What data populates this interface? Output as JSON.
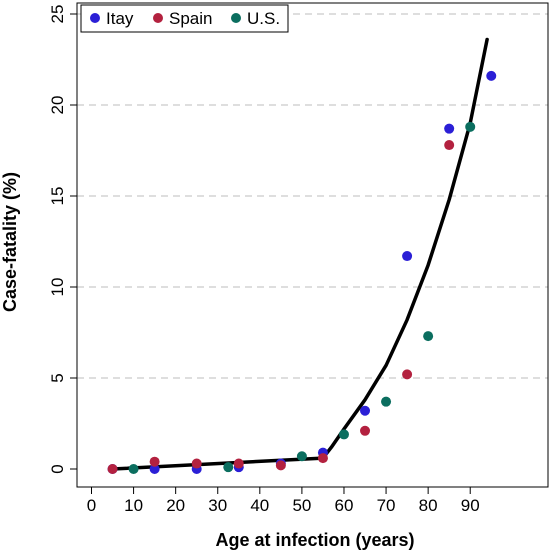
{
  "chart_data": {
    "type": "scatter",
    "xlabel": "Age at infection (years)",
    "ylabel": "Case-fatality (%)",
    "xlim": [
      0,
      97
    ],
    "ylim": [
      0,
      25
    ],
    "x_ticks": [
      0,
      10,
      20,
      30,
      40,
      50,
      60,
      70,
      80,
      90
    ],
    "y_ticks": [
      0,
      5,
      10,
      15,
      20,
      25
    ],
    "grid": "horizontal dashed at y ticks",
    "legend_position": "top-left",
    "series": [
      {
        "name": "Itay",
        "color": "#2B1FD6",
        "points": [
          [
            5,
            0.0
          ],
          [
            15,
            0.0
          ],
          [
            25,
            0.0
          ],
          [
            35,
            0.1
          ],
          [
            45,
            0.3
          ],
          [
            55,
            0.9
          ],
          [
            65,
            3.2
          ],
          [
            75,
            11.7
          ],
          [
            85,
            18.7
          ],
          [
            95,
            21.6
          ]
        ]
      },
      {
        "name": "Spain",
        "color": "#B3213F",
        "points": [
          [
            5,
            0.0
          ],
          [
            15,
            0.4
          ],
          [
            25,
            0.3
          ],
          [
            35,
            0.3
          ],
          [
            45,
            0.2
          ],
          [
            55,
            0.6
          ],
          [
            65,
            2.1
          ],
          [
            75,
            5.2
          ],
          [
            85,
            17.8
          ]
        ]
      },
      {
        "name": "U.S.",
        "color": "#0B6E5F",
        "points": [
          [
            10,
            0.0
          ],
          [
            32.5,
            0.1
          ],
          [
            50,
            0.7
          ],
          [
            60,
            1.9
          ],
          [
            70,
            3.7
          ],
          [
            80,
            7.3
          ],
          [
            90,
            18.8
          ]
        ]
      }
    ],
    "fit_line": {
      "color": "#000000",
      "points": [
        [
          5,
          0.0
        ],
        [
          55,
          0.6
        ],
        [
          57,
          1.2
        ],
        [
          60,
          2.2
        ],
        [
          65,
          3.8
        ],
        [
          70,
          5.7
        ],
        [
          75,
          8.2
        ],
        [
          80,
          11.2
        ],
        [
          85,
          14.8
        ],
        [
          90,
          19.0
        ],
        [
          94,
          23.6
        ]
      ]
    }
  }
}
